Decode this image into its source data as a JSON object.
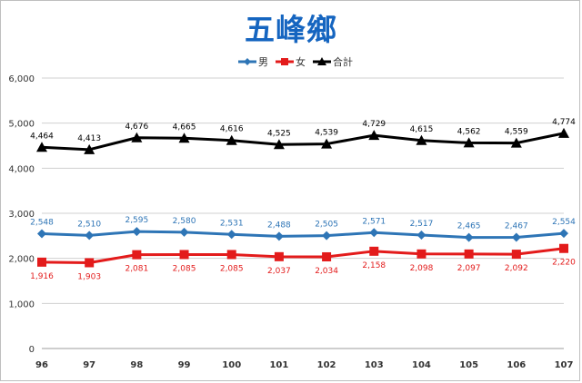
{
  "chart_data": {
    "type": "line",
    "title": "五峰鄉",
    "xlabel": "",
    "ylabel": "",
    "categories": [
      "96",
      "97",
      "98",
      "99",
      "100",
      "101",
      "102",
      "103",
      "104",
      "105",
      "106",
      "107"
    ],
    "ylim": [
      0,
      6000
    ],
    "yticks": [
      0,
      1000,
      2000,
      3000,
      4000,
      5000,
      6000
    ],
    "grid": "horizontal",
    "legend_position": "top",
    "series": [
      {
        "name": "男",
        "color": "#2e75b6",
        "marker": "diamond",
        "label_position": "above",
        "values": [
          2548,
          2510,
          2595,
          2580,
          2531,
          2488,
          2505,
          2571,
          2517,
          2465,
          2467,
          2554
        ]
      },
      {
        "name": "女",
        "color": "#e31b1b",
        "marker": "square",
        "label_position": "below",
        "values": [
          1916,
          1903,
          2081,
          2085,
          2085,
          2037,
          2034,
          2158,
          2098,
          2097,
          2092,
          2220
        ]
      },
      {
        "name": "合計",
        "color": "#000000",
        "marker": "triangle",
        "label_position": "above",
        "values": [
          4464,
          4413,
          4676,
          4665,
          4616,
          4525,
          4539,
          4729,
          4615,
          4562,
          4559,
          4774
        ]
      }
    ]
  }
}
